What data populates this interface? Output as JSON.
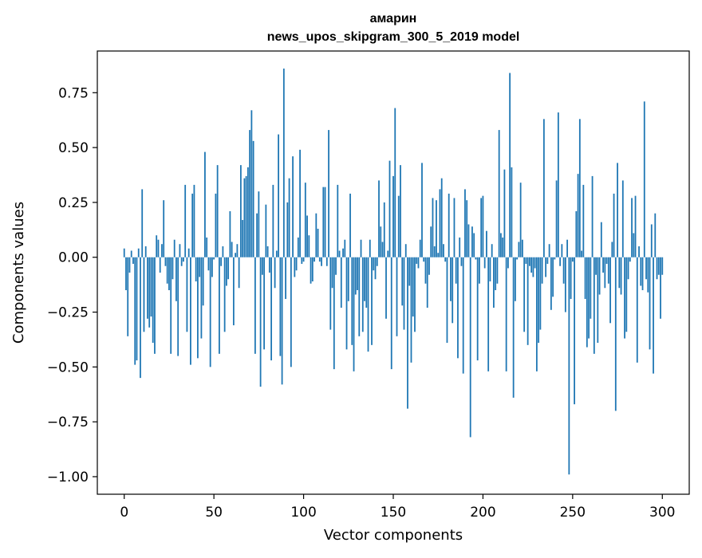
{
  "chart_data": {
    "type": "bar",
    "title": "амарин",
    "subtitle": "news_upos_skipgram_300_5_2019 model",
    "xlabel": "Vector components",
    "ylabel": "Components values",
    "xlim": [
      -15,
      315
    ],
    "ylim": [
      -1.08,
      0.94
    ],
    "xticks": [
      0,
      50,
      100,
      150,
      200,
      250,
      300
    ],
    "yticks": [
      -1.0,
      -0.75,
      -0.5,
      -0.25,
      0.0,
      0.25,
      0.5,
      0.75
    ],
    "ytick_labels": [
      "−1.00",
      "−0.75",
      "−0.50",
      "−0.25",
      "0.00",
      "0.25",
      "0.50",
      "0.75"
    ],
    "bar_color": "#1f77b4",
    "values": [
      0.04,
      -0.15,
      -0.36,
      -0.07,
      0.03,
      -0.03,
      -0.49,
      -0.47,
      0.04,
      -0.55,
      0.31,
      -0.34,
      0.05,
      -0.28,
      -0.32,
      -0.27,
      -0.39,
      -0.44,
      0.1,
      0.08,
      -0.07,
      0.06,
      0.26,
      -0.04,
      -0.12,
      -0.15,
      -0.44,
      -0.1,
      0.08,
      -0.2,
      -0.45,
      0.06,
      -0.04,
      -0.02,
      0.33,
      -0.34,
      0.04,
      -0.49,
      0.29,
      0.33,
      -0.11,
      -0.46,
      -0.09,
      -0.37,
      -0.22,
      0.48,
      0.09,
      -0.06,
      -0.5,
      -0.09,
      -0.01,
      0.29,
      0.42,
      -0.44,
      -0.04,
      0.05,
      -0.34,
      -0.13,
      -0.1,
      0.21,
      0.07,
      -0.31,
      0.02,
      0.06,
      -0.14,
      0.42,
      0.17,
      0.36,
      0.37,
      0.41,
      0.58,
      0.67,
      0.53,
      -0.44,
      0.2,
      0.3,
      -0.59,
      -0.08,
      -0.42,
      0.24,
      0.05,
      -0.07,
      -0.47,
      0.33,
      -0.14,
      0.03,
      0.56,
      -0.45,
      -0.58,
      0.86,
      -0.19,
      0.25,
      0.36,
      -0.5,
      0.46,
      -0.09,
      -0.06,
      0.09,
      0.49,
      -0.03,
      -0.02,
      0.34,
      0.19,
      0.1,
      -0.12,
      -0.11,
      -0.02,
      0.2,
      0.13,
      -0.02,
      -0.04,
      0.32,
      0.32,
      -0.04,
      0.58,
      -0.33,
      -0.14,
      -0.51,
      -0.08,
      0.33,
      0.03,
      -0.23,
      0.04,
      0.08,
      -0.42,
      -0.2,
      0.29,
      -0.4,
      -0.52,
      -0.17,
      -0.15,
      -0.36,
      0.08,
      -0.34,
      -0.2,
      -0.23,
      -0.43,
      0.08,
      -0.4,
      -0.06,
      -0.1,
      -0.04,
      0.35,
      0.14,
      0.07,
      0.25,
      -0.28,
      0.03,
      0.44,
      -0.51,
      0.37,
      0.68,
      -0.36,
      0.28,
      0.42,
      -0.22,
      -0.33,
      0.06,
      -0.69,
      -0.13,
      -0.48,
      -0.27,
      -0.34,
      -0.03,
      -0.05,
      0.08,
      0.43,
      -0.02,
      -0.12,
      -0.23,
      -0.08,
      0.14,
      0.27,
      0.05,
      0.26,
      0.02,
      0.31,
      0.36,
      0.06,
      -0.02,
      -0.39,
      0.29,
      -0.2,
      -0.3,
      0.27,
      -0.12,
      -0.46,
      0.09,
      -0.04,
      -0.53,
      0.31,
      0.26,
      0.15,
      -0.82,
      0.14,
      0.11,
      -0.01,
      -0.47,
      -0.12,
      0.27,
      0.28,
      -0.05,
      0.12,
      -0.52,
      -0.11,
      0.06,
      -0.23,
      -0.15,
      -0.12,
      0.58,
      0.11,
      0.09,
      0.4,
      -0.52,
      -0.05,
      0.84,
      0.41,
      -0.64,
      -0.2,
      -0.01,
      0.07,
      0.34,
      0.08,
      -0.34,
      -0.03,
      -0.4,
      -0.04,
      -0.07,
      -0.09,
      -0.05,
      -0.52,
      -0.39,
      -0.33,
      -0.12,
      0.63,
      -0.09,
      -0.03,
      0.06,
      -0.24,
      -0.18,
      -0.01,
      0.35,
      0.66,
      -0.04,
      0.06,
      -0.12,
      -0.25,
      0.08,
      -0.99,
      -0.19,
      -0.02,
      -0.67,
      0.21,
      0.38,
      0.63,
      0.03,
      0.33,
      -0.19,
      -0.41,
      -0.37,
      -0.28,
      0.37,
      -0.44,
      -0.08,
      -0.39,
      -0.17,
      0.16,
      -0.07,
      -0.14,
      -0.03,
      -0.12,
      -0.3,
      0.07,
      0.29,
      -0.7,
      0.43,
      -0.14,
      -0.17,
      0.35,
      -0.37,
      -0.34,
      -0.1,
      -0.02,
      0.27,
      0.11,
      0.28,
      -0.48,
      0.05,
      -0.13,
      -0.15,
      0.71,
      -0.1,
      -0.16,
      -0.42,
      0.15,
      -0.53,
      0.2,
      -0.1,
      -0.08,
      -0.28,
      -0.08
    ]
  }
}
